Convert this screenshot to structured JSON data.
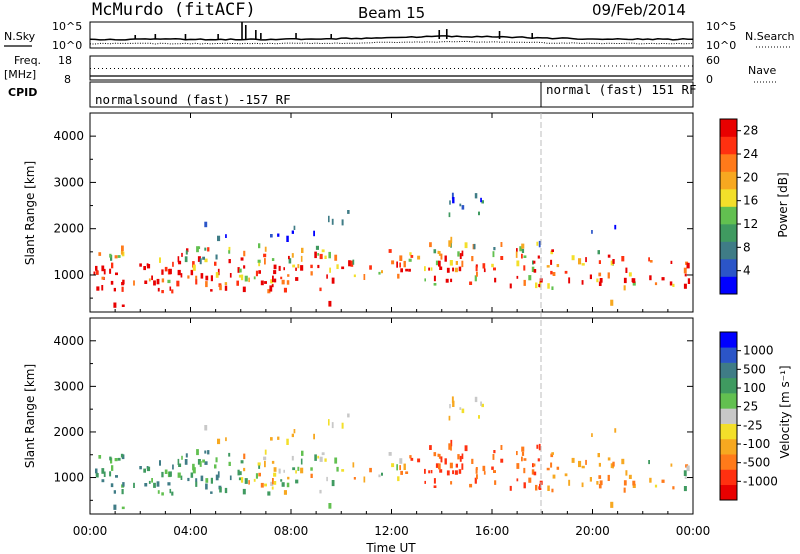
{
  "header": {
    "title": "McMurdo (fitACF)",
    "beam": "Beam 15",
    "date": "09/Feb/2014"
  },
  "side_labels": {
    "nsky": "N.Sky",
    "freq": "Freq.",
    "freq_unit": "[MHz]",
    "cpid": "CPID",
    "nsearch": "N.Search",
    "nave": "Nave"
  },
  "noise_axis": {
    "top": "10^5",
    "bottom": "10^0",
    "right_top": "10^5",
    "right_bottom": "10^0"
  },
  "freq_axis": {
    "top": "18",
    "bottom": "8",
    "nave_top": "60",
    "nave_bottom": "0"
  },
  "cpid_labels": [
    "normalsound (fast) -157 RF",
    "normal (fast) 151 RF"
  ],
  "colors": {
    "power_scale": [
      "#0000ff",
      "#2b55c8",
      "#3f7c86",
      "#3f9a60",
      "#62c050",
      "#f3df2a",
      "#f7a820",
      "#ff7a1a",
      "#ff3010",
      "#e80000"
    ],
    "velocity_scale": [
      "#0000ff",
      "#2b55c8",
      "#3f7c86",
      "#3f9a60",
      "#62c050",
      "#c8c8c8",
      "#f3df2a",
      "#f7a820",
      "#ff7a1a",
      "#ff3010",
      "#e80000"
    ]
  },
  "chart_data": [
    {
      "type": "heatmap",
      "quantity": "Power",
      "ylabel": "Slant Range [km]",
      "yticks": [
        1000,
        2000,
        3000,
        4000
      ],
      "ylim": [
        200,
        4500
      ],
      "xlim": [
        0,
        24
      ],
      "colorbar_label": "Power [dB]",
      "colorbar_ticks": [
        "4",
        "8",
        "12",
        "16",
        "20",
        "24",
        "28"
      ],
      "colorbar_range": [
        0,
        30
      ]
    },
    {
      "type": "heatmap",
      "quantity": "Velocity",
      "ylabel": "Slant Range [km]",
      "yticks": [
        1000,
        2000,
        3000,
        4000
      ],
      "ylim": [
        200,
        4500
      ],
      "xlim": [
        0,
        24
      ],
      "xlabel": "Time UT",
      "xticks": [
        "00:00",
        "04:00",
        "08:00",
        "12:00",
        "16:00",
        "20:00",
        "00:00"
      ],
      "colorbar_label": "Velocity [m s⁻¹]",
      "colorbar_ticks": [
        "1000",
        "500",
        "100",
        "25",
        "-25",
        "-100",
        "-500",
        "-1000"
      ]
    }
  ]
}
